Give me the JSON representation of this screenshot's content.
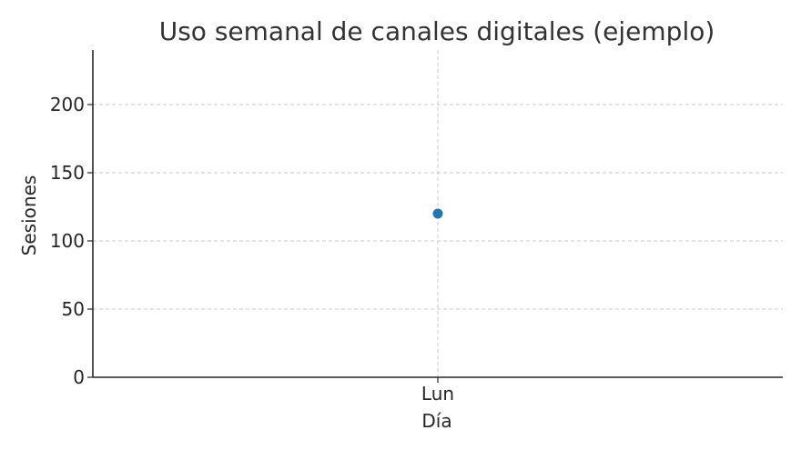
{
  "chart_data": {
    "type": "scatter",
    "title": "Uso semanal de canales digitales (ejemplo)",
    "xlabel": "Día",
    "ylabel": "Sesiones",
    "categories": [
      "Lun"
    ],
    "series": [
      {
        "values": [
          120
        ],
        "color": "#1f77b4"
      }
    ],
    "ylim": [
      0,
      240
    ],
    "yticks": [
      0,
      50,
      100,
      150,
      200
    ],
    "grid": true
  }
}
